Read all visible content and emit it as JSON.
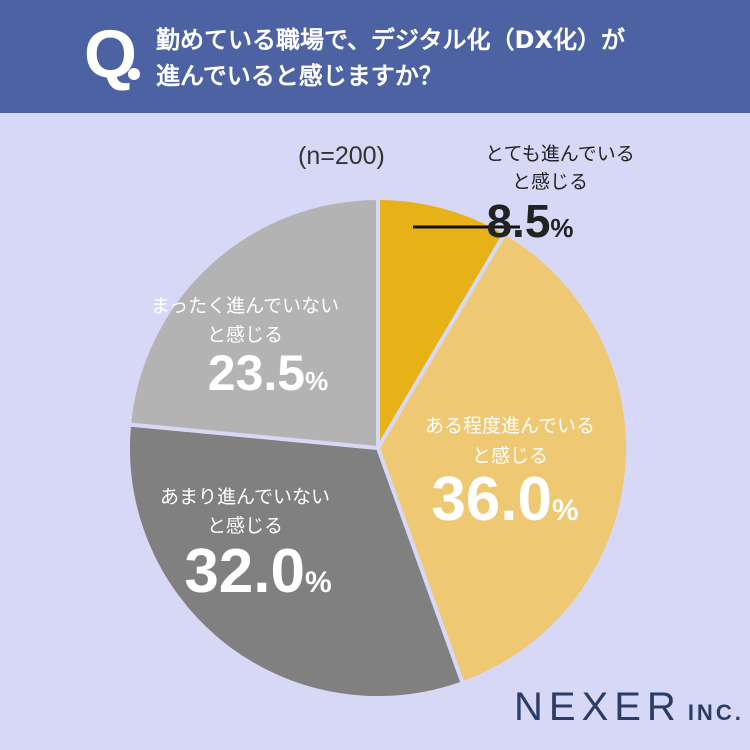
{
  "header": {
    "q_mark": "Q",
    "question_line1": "勤めている職場で、デジタル化（DX化）が",
    "question_line2": "進んでいると感じますか？"
  },
  "n_label": "(n=200)",
  "logo": {
    "main": "NEXER",
    "inc": "INC."
  },
  "colors": {
    "header_bg": "#4d62a3",
    "background": "#d7d8f6",
    "slice1": "#e6b217",
    "slice2": "#eec873",
    "slice3": "#808080",
    "slice4": "#b3b3b3"
  },
  "chart_data": {
    "type": "pie",
    "slices": [
      {
        "label_line1": "とても進んでいる",
        "label_line2": "と感じる",
        "value": 8.5,
        "value_text": "8.5",
        "unit": "%",
        "color": "#e6b217"
      },
      {
        "label_line1": "ある程度進んでいる",
        "label_line2": "と感じる",
        "value": 36.0,
        "value_text": "36.0",
        "unit": "%",
        "color": "#eec873"
      },
      {
        "label_line1": "あまり進んでいない",
        "label_line2": "と感じる",
        "value": 32.0,
        "value_text": "32.0",
        "unit": "%",
        "color": "#808080"
      },
      {
        "label_line1": "まったく進んでいない",
        "label_line2": "と感じる",
        "value": 23.5,
        "value_text": "23.5",
        "unit": "%",
        "color": "#b3b3b3"
      }
    ]
  }
}
